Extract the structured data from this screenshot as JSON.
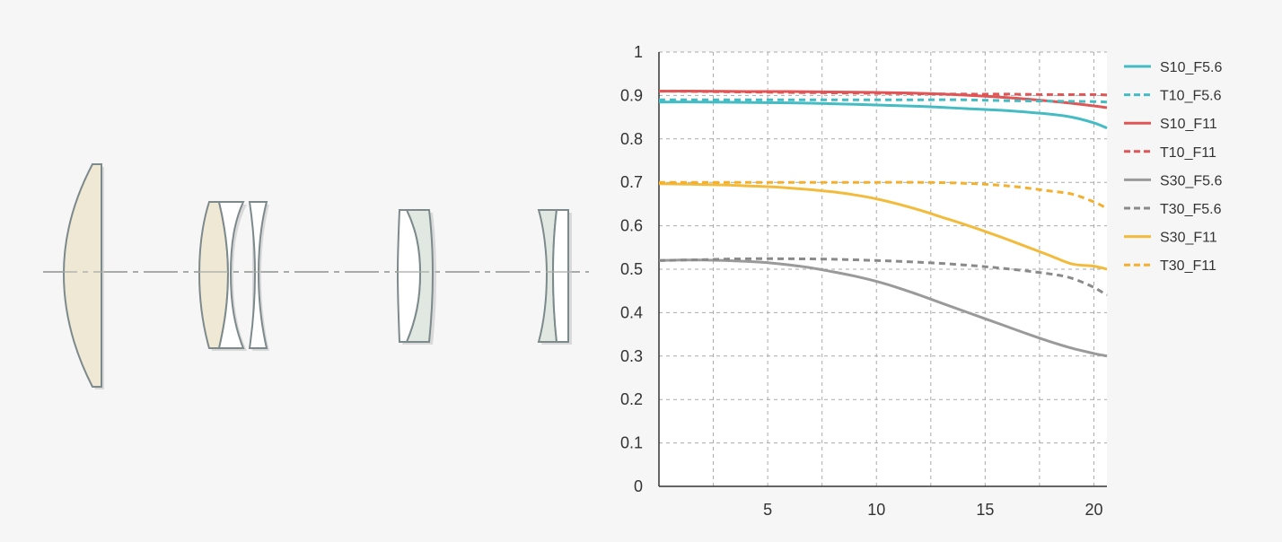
{
  "chart_data": {
    "type": "line",
    "x_ticks": [
      5,
      10,
      15,
      20
    ],
    "y_ticks": [
      0,
      0.1,
      0.2,
      0.3,
      0.4,
      0.5,
      0.6,
      0.7,
      0.8,
      0.9,
      1
    ],
    "y_tick_labels": [
      "0",
      "0.1",
      "0.2",
      "0.3",
      "0.4",
      "0.5",
      "0.6",
      "0.7",
      "0.8",
      "0.9",
      "1"
    ],
    "xlim": [
      0,
      20.6
    ],
    "ylim": [
      0,
      1
    ],
    "grid": true,
    "legend_position": "right",
    "series": [
      {
        "name": "S10_F5.6",
        "color": "#45bcc4",
        "dash": false,
        "x": [
          0,
          2,
          4,
          6,
          8,
          10,
          12,
          14,
          16,
          18,
          19,
          20,
          20.6
        ],
        "y": [
          0.885,
          0.885,
          0.884,
          0.883,
          0.881,
          0.878,
          0.875,
          0.87,
          0.865,
          0.857,
          0.85,
          0.837,
          0.825
        ]
      },
      {
        "name": "T10_F5.6",
        "color": "#45bcc4",
        "dash": true,
        "x": [
          0,
          2,
          4,
          6,
          8,
          10,
          12,
          14,
          16,
          18,
          20,
          20.6
        ],
        "y": [
          0.89,
          0.89,
          0.89,
          0.89,
          0.89,
          0.89,
          0.89,
          0.89,
          0.888,
          0.887,
          0.886,
          0.885
        ]
      },
      {
        "name": "S10_F11",
        "color": "#e05555",
        "dash": false,
        "x": [
          0,
          2,
          4,
          6,
          8,
          10,
          12,
          14,
          16,
          18,
          19,
          20,
          20.6
        ],
        "y": [
          0.91,
          0.91,
          0.909,
          0.909,
          0.908,
          0.907,
          0.905,
          0.901,
          0.895,
          0.887,
          0.882,
          0.876,
          0.872
        ]
      },
      {
        "name": "T10_F11",
        "color": "#e05555",
        "dash": true,
        "x": [
          0,
          2,
          4,
          6,
          8,
          10,
          12,
          14,
          16,
          18,
          20,
          20.6
        ],
        "y": [
          0.91,
          0.909,
          0.908,
          0.907,
          0.906,
          0.905,
          0.904,
          0.903,
          0.903,
          0.902,
          0.902,
          0.901
        ]
      },
      {
        "name": "S30_F5.6",
        "color": "#9a9a9a",
        "dash": false,
        "x": [
          0,
          1,
          2,
          3,
          4,
          5,
          6,
          7,
          8,
          9,
          10,
          11,
          12,
          13,
          14,
          15,
          16,
          17,
          18,
          19,
          20,
          20.6
        ],
        "y": [
          0.52,
          0.521,
          0.521,
          0.52,
          0.518,
          0.515,
          0.51,
          0.503,
          0.494,
          0.484,
          0.472,
          0.457,
          0.44,
          0.422,
          0.404,
          0.386,
          0.368,
          0.35,
          0.333,
          0.318,
          0.306,
          0.3
        ]
      },
      {
        "name": "T30_F5.6",
        "color": "#8a8a8a",
        "dash": true,
        "x": [
          0,
          2,
          4,
          6,
          8,
          10,
          12,
          14,
          16,
          18,
          19,
          20,
          20.6
        ],
        "y": [
          0.52,
          0.522,
          0.524,
          0.524,
          0.523,
          0.52,
          0.516,
          0.51,
          0.501,
          0.489,
          0.479,
          0.458,
          0.44
        ]
      },
      {
        "name": "S30_F11",
        "color": "#f3bb3c",
        "dash": false,
        "x": [
          0,
          1,
          2,
          3,
          4,
          5,
          6,
          7,
          8,
          9,
          10,
          11,
          12,
          13,
          14,
          15,
          16,
          17,
          18,
          19,
          20,
          20.6
        ],
        "y": [
          0.697,
          0.696,
          0.695,
          0.694,
          0.692,
          0.69,
          0.687,
          0.683,
          0.678,
          0.671,
          0.662,
          0.65,
          0.636,
          0.62,
          0.604,
          0.587,
          0.569,
          0.55,
          0.531,
          0.512,
          0.507,
          0.5
        ]
      },
      {
        "name": "T30_F11",
        "color": "#f3b02e",
        "dash": true,
        "x": [
          0,
          2,
          4,
          6,
          8,
          10,
          12,
          14,
          16,
          18,
          19,
          20,
          20.6
        ],
        "y": [
          0.7,
          0.7,
          0.7,
          0.7,
          0.7,
          0.7,
          0.7,
          0.698,
          0.692,
          0.68,
          0.673,
          0.655,
          0.64
        ]
      }
    ]
  },
  "lens_diagram": {
    "elements": [
      {
        "name": "element-1",
        "fill": "#efe8d4"
      },
      {
        "name": "element-2a",
        "fill": "#efe8d4"
      },
      {
        "name": "element-2b",
        "fill": "#ffffff"
      },
      {
        "name": "element-3",
        "fill": "#ffffff"
      },
      {
        "name": "element-4a",
        "fill": "#ffffff"
      },
      {
        "name": "element-4b",
        "fill": "#e1e8e1"
      },
      {
        "name": "element-5a",
        "fill": "#e1e8e1"
      },
      {
        "name": "element-5b",
        "fill": "#ffffff"
      }
    ]
  }
}
